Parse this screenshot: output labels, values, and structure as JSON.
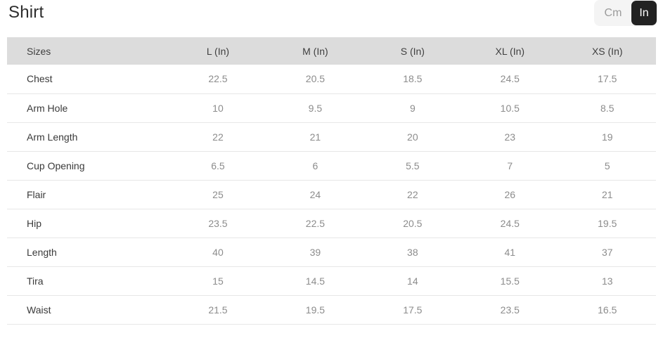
{
  "page": {
    "title": "Shirt"
  },
  "unit_toggle": {
    "cm_label": "Cm",
    "in_label": "In",
    "selected": "In"
  },
  "table": {
    "columns": [
      "Sizes",
      "L (In)",
      "M (In)",
      "S (In)",
      "XL (In)",
      "XS (In)"
    ],
    "rows": [
      {
        "label": "Chest",
        "values": [
          "22.5",
          "20.5",
          "18.5",
          "24.5",
          "17.5"
        ]
      },
      {
        "label": "Arm Hole",
        "values": [
          "10",
          "9.5",
          "9",
          "10.5",
          "8.5"
        ]
      },
      {
        "label": "Arm Length",
        "values": [
          "22",
          "21",
          "20",
          "23",
          "19"
        ]
      },
      {
        "label": "Cup Opening",
        "values": [
          "6.5",
          "6",
          "5.5",
          "7",
          "5"
        ]
      },
      {
        "label": "Flair",
        "values": [
          "25",
          "24",
          "22",
          "26",
          "21"
        ]
      },
      {
        "label": "Hip",
        "values": [
          "23.5",
          "22.5",
          "20.5",
          "24.5",
          "19.5"
        ]
      },
      {
        "label": "Length",
        "values": [
          "40",
          "39",
          "38",
          "41",
          "37"
        ]
      },
      {
        "label": "Tira",
        "values": [
          "15",
          "14.5",
          "14",
          "15.5",
          "13"
        ]
      },
      {
        "label": "Waist",
        "values": [
          "21.5",
          "19.5",
          "17.5",
          "23.5",
          "16.5"
        ]
      }
    ]
  },
  "colors": {
    "selected_toggle_bg": "#222222",
    "selected_toggle_text": "#ffffff",
    "toggle_container_bg": "#f4f4f4",
    "header_row_bg": "#dcdcdc",
    "row_border": "#e7e7e7",
    "label_text": "#3a3a3a",
    "value_text": "#8c8c8c"
  }
}
